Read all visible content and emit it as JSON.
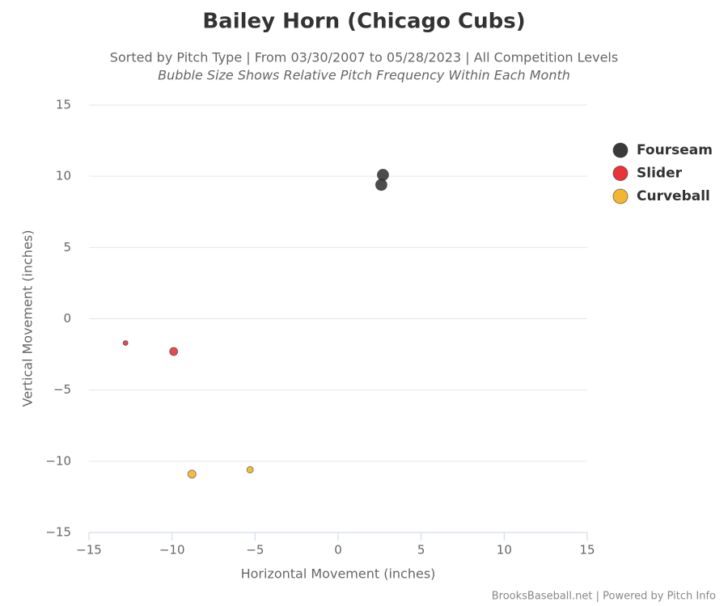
{
  "chart_data": {
    "type": "bubble",
    "title": "Bailey Horn (Chicago Cubs)",
    "subtitle": "Sorted by Pitch Type | From 03/30/2007 to 05/28/2023 | All Competition Levels",
    "subtitle2": "Bubble Size Shows Relative Pitch Frequency Within Each Month",
    "x_label": "Horizontal Movement (inches)",
    "y_label": "Vertical Movement (inches)",
    "credits": "BrooksBaseball.net | Powered by Pitch Info",
    "xlim": [
      -15,
      15
    ],
    "ylim": [
      -15,
      15
    ],
    "xticks": [
      {
        "value": -15,
        "label": "−15"
      },
      {
        "value": -10,
        "label": "−10"
      },
      {
        "value": -5,
        "label": "−5"
      },
      0,
      5,
      10,
      15
    ],
    "yticks": [
      {
        "value": -15,
        "label": "−15"
      },
      {
        "value": -10,
        "label": "−10"
      },
      {
        "value": -5,
        "label": "−5"
      },
      0,
      5,
      10,
      15
    ],
    "grid": true,
    "legend": "right",
    "series": [
      {
        "name": "Fourseam",
        "color": "#3a3a3a",
        "x": [
          2.7,
          2.6
        ],
        "values": [
          10.1,
          9.4
        ],
        "sizes": [
          7,
          7
        ]
      },
      {
        "name": "Slider",
        "color": "#e8343a",
        "x": [
          -12.8,
          -9.9
        ],
        "values": [
          -1.7,
          -2.3
        ],
        "sizes": [
          3,
          5
        ]
      },
      {
        "name": "Curveball",
        "color": "#f2b630",
        "x": [
          -8.8,
          -5.3
        ],
        "values": [
          -10.9,
          -10.6
        ],
        "sizes": [
          5,
          4
        ]
      }
    ]
  }
}
